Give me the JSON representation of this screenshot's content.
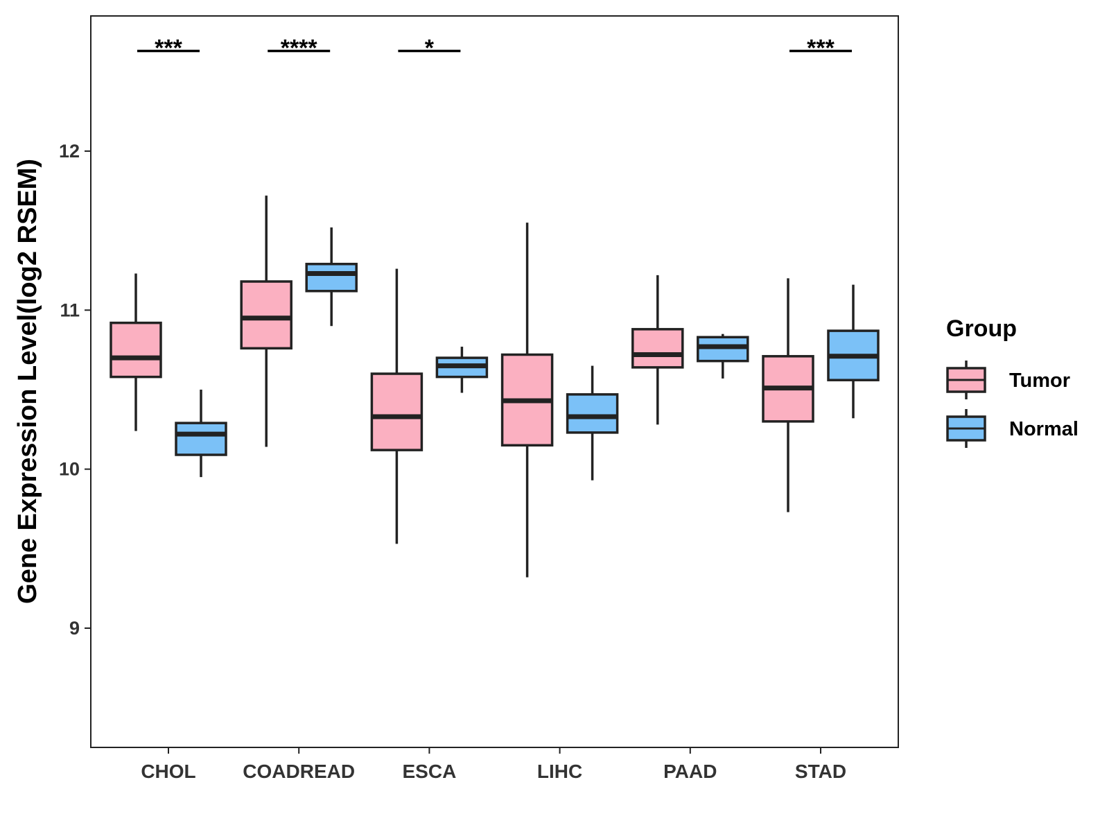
{
  "colors": {
    "tumor": "#FBB0C1",
    "normal": "#7BC1F7",
    "stroke": "#222222",
    "panel_border": "#222222",
    "text": "#333333"
  },
  "chart_data": {
    "type": "boxplot",
    "title": "",
    "xlabel": "",
    "ylabel": "Gene Expression Level(log2 RSEM)",
    "ylim": [
      8.25,
      12.85
    ],
    "yticks": [
      9,
      10,
      11,
      12
    ],
    "grid": false,
    "legend_position": "right",
    "legend_title": "Group",
    "categories": [
      "CHOL",
      "COADREAD",
      "ESCA",
      "LIHC",
      "PAAD",
      "STAD"
    ],
    "series": [
      {
        "name": "Tumor",
        "color_key": "tumor",
        "boxes": [
          {
            "category": "CHOL",
            "min": 10.24,
            "q1": 10.58,
            "median": 10.7,
            "q3": 10.92,
            "max": 11.23
          },
          {
            "category": "COADREAD",
            "min": 10.14,
            "q1": 10.76,
            "median": 10.95,
            "q3": 11.18,
            "max": 11.72
          },
          {
            "category": "ESCA",
            "min": 9.53,
            "q1": 10.12,
            "median": 10.33,
            "q3": 10.6,
            "max": 11.26
          },
          {
            "category": "LIHC",
            "min": 9.32,
            "q1": 10.15,
            "median": 10.43,
            "q3": 10.72,
            "max": 11.55
          },
          {
            "category": "PAAD",
            "min": 10.28,
            "q1": 10.64,
            "median": 10.72,
            "q3": 10.88,
            "max": 11.22
          },
          {
            "category": "STAD",
            "min": 9.73,
            "q1": 10.3,
            "median": 10.51,
            "q3": 10.71,
            "max": 11.2
          }
        ]
      },
      {
        "name": "Normal",
        "color_key": "normal",
        "boxes": [
          {
            "category": "CHOL",
            "min": 9.95,
            "q1": 10.09,
            "median": 10.22,
            "q3": 10.29,
            "max": 10.5
          },
          {
            "category": "COADREAD",
            "min": 10.9,
            "q1": 11.12,
            "median": 11.23,
            "q3": 11.29,
            "max": 11.52
          },
          {
            "category": "ESCA",
            "min": 10.48,
            "q1": 10.58,
            "median": 10.65,
            "q3": 10.7,
            "max": 10.77
          },
          {
            "category": "LIHC",
            "min": 9.93,
            "q1": 10.23,
            "median": 10.33,
            "q3": 10.47,
            "max": 10.65
          },
          {
            "category": "PAAD",
            "min": 10.57,
            "q1": 10.68,
            "median": 10.77,
            "q3": 10.83,
            "max": 10.85
          },
          {
            "category": "STAD",
            "min": 10.32,
            "q1": 10.56,
            "median": 10.71,
            "q3": 10.87,
            "max": 11.16
          }
        ]
      }
    ],
    "significance": [
      {
        "category": "CHOL",
        "label": "***"
      },
      {
        "category": "COADREAD",
        "label": "****"
      },
      {
        "category": "ESCA",
        "label": "*"
      },
      {
        "category": "STAD",
        "label": "***"
      }
    ],
    "significance_y": 12.63
  }
}
